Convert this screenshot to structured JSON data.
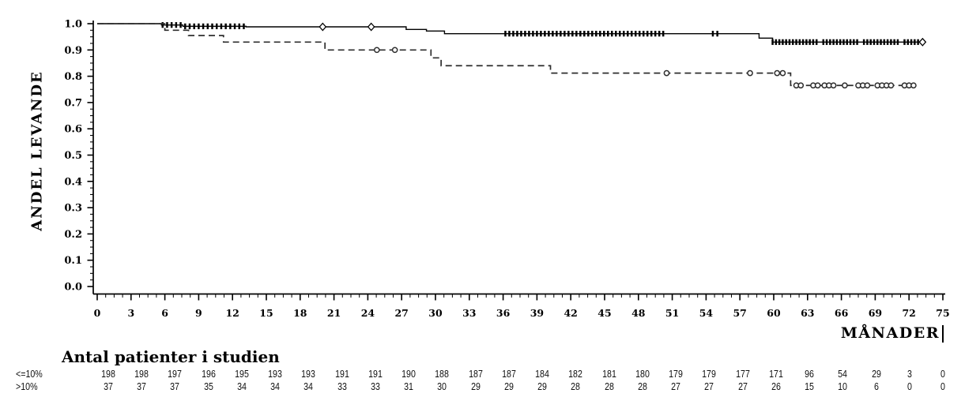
{
  "chart_data": {
    "type": "line",
    "title": "",
    "xlabel": "MÅNADER",
    "ylabel": "ANDEL LEVANDE",
    "xlim": [
      0,
      75
    ],
    "ylim": [
      0.0,
      1.0
    ],
    "grid": false,
    "legend": "none",
    "x_tick_labels": [
      "0",
      "3",
      "6",
      "9",
      "12",
      "15",
      "18",
      "21",
      "24",
      "27",
      "30",
      "33",
      "36",
      "39",
      "42",
      "45",
      "48",
      "51",
      "54",
      "57",
      "60",
      "63",
      "66",
      "69",
      "72",
      "75"
    ],
    "y_tick_labels": [
      "1.0",
      "0.9",
      "0.8",
      "0.7",
      "0.6",
      "0.5",
      "0.4",
      "0.3",
      "0.2",
      "0.1",
      "0.0"
    ],
    "x_minor_per_interval": 3,
    "y_minor_per_interval": 3,
    "series": [
      {
        "name": "<=10%",
        "line": "solid",
        "color": "#000000",
        "steps": [
          [
            0,
            1.0
          ],
          [
            5.7,
            0.995
          ],
          [
            7.6,
            0.99
          ],
          [
            13.2,
            0.988
          ],
          [
            27.4,
            0.978
          ],
          [
            29.2,
            0.972
          ],
          [
            30.8,
            0.962
          ],
          [
            58.7,
            0.945
          ],
          [
            59.9,
            0.93
          ]
        ],
        "end_x": 73.4,
        "censor_ticks": [
          5.8,
          6.2,
          6.6,
          7.0,
          7.4,
          7.8,
          8.2,
          8.6,
          9.0,
          9.4,
          9.8,
          10.2,
          10.6,
          11.0,
          11.4,
          11.8,
          12.2,
          12.6,
          13.0,
          36.2,
          36.55,
          36.9,
          37.25,
          37.6,
          37.95,
          38.3,
          38.65,
          39.0,
          39.35,
          39.7,
          40.05,
          40.4,
          40.75,
          41.1,
          41.45,
          41.8,
          42.15,
          42.5,
          42.85,
          43.2,
          43.55,
          43.9,
          44.25,
          44.6,
          44.95,
          45.3,
          45.65,
          46.0,
          46.35,
          46.7,
          47.05,
          47.4,
          47.75,
          48.1,
          48.45,
          48.8,
          49.15,
          49.5,
          49.85,
          50.2,
          54.6,
          55.0,
          59.9,
          60.2,
          60.5,
          60.8,
          61.1,
          61.4,
          61.7,
          62.0,
          62.3,
          62.6,
          62.9,
          63.2,
          63.5,
          63.8,
          64.4,
          64.7,
          65.0,
          65.3,
          65.6,
          65.9,
          66.2,
          66.5,
          66.8,
          67.1,
          67.4,
          68.0,
          68.3,
          68.6,
          68.9,
          69.2,
          69.5,
          69.8,
          70.1,
          70.4,
          70.7,
          71.0,
          71.6,
          71.9,
          72.2,
          72.5,
          72.8
        ],
        "censor_diamonds": [
          20.0,
          24.3,
          73.2
        ]
      },
      {
        "name": ">10%",
        "line": "dashed",
        "color": "#2e2e2e",
        "steps": [
          [
            0,
            1.0
          ],
          [
            6.0,
            0.975
          ],
          [
            8.1,
            0.955
          ],
          [
            11.2,
            0.93
          ],
          [
            20.2,
            0.9
          ],
          [
            29.6,
            0.87
          ],
          [
            30.5,
            0.84
          ],
          [
            40.2,
            0.812
          ],
          [
            61.5,
            0.765
          ]
        ],
        "end_x": 72.6,
        "censor_circles": [
          24.8,
          26.4,
          50.5,
          57.9,
          60.3,
          60.8,
          62.0,
          62.4,
          63.5,
          63.9,
          64.5,
          64.9,
          65.3,
          66.3,
          67.5,
          67.9,
          68.3,
          69.2,
          69.6,
          70.0,
          70.4,
          71.6,
          72.0,
          72.4
        ]
      }
    ]
  },
  "risk_table": {
    "title": "Antal patienter i studien",
    "rows": [
      {
        "label": "<=10%",
        "values": [
          "198",
          "198",
          "197",
          "196",
          "195",
          "193",
          "193",
          "191",
          "191",
          "190",
          "188",
          "187",
          "187",
          "184",
          "182",
          "181",
          "180",
          "179",
          "179",
          "177",
          "171",
          "96",
          "54",
          "29",
          "3",
          "0"
        ]
      },
      {
        "label": ">10%",
        "values": [
          "37",
          "37",
          "37",
          "35",
          "34",
          "34",
          "34",
          "33",
          "33",
          "31",
          "30",
          "29",
          "29",
          "29",
          "28",
          "28",
          "28",
          "27",
          "27",
          "27",
          "26",
          "15",
          "10",
          "6",
          "0",
          "0"
        ]
      }
    ]
  }
}
